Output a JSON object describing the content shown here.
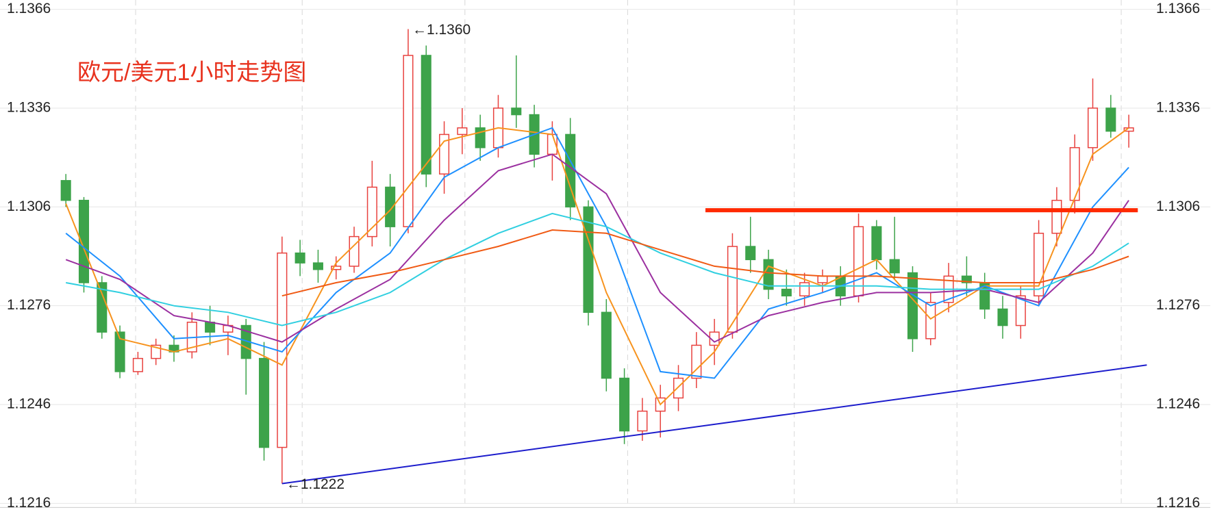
{
  "chart_data": {
    "type": "candlestick",
    "title": "欧元/美元1小时走势图",
    "ylim": [
      1.1216,
      1.1366
    ],
    "yticks": [
      1.1216,
      1.1246,
      1.1276,
      1.1306,
      1.1336,
      1.1366
    ],
    "y2lim": [
      1.1216,
      1.1366
    ],
    "y2ticks": [
      1.1216,
      1.1246,
      1.1276,
      1.1306,
      1.1336,
      1.1366
    ],
    "grid": true,
    "up_color": "#e8413e",
    "down_color": "#3da34a",
    "open": [
      1.1314,
      1.1308,
      1.1283,
      1.1268,
      1.1256,
      1.126,
      1.1264,
      1.1262,
      1.1271,
      1.1268,
      1.127,
      1.126,
      1.1233,
      1.1292,
      1.1289,
      1.1287,
      1.1288,
      1.1297,
      1.1312,
      1.13,
      1.1352,
      1.1316,
      1.1328,
      1.133,
      1.1324,
      1.1336,
      1.1334,
      1.1322,
      1.1328,
      1.1306,
      1.1274,
      1.1254,
      1.1238,
      1.1244,
      1.1248,
      1.1254,
      1.1264,
      1.1268,
      1.1294,
      1.129,
      1.1281,
      1.1279,
      1.1283,
      1.1285,
      1.1279,
      1.13,
      1.129,
      1.1286,
      1.1266,
      1.1277,
      1.1285,
      1.1283,
      1.1275,
      1.127,
      1.1279,
      1.1298,
      1.1308,
      1.1324,
      1.1336,
      1.1329
    ],
    "high": [
      1.1316,
      1.1309,
      1.1285,
      1.127,
      1.1262,
      1.1266,
      1.1267,
      1.1274,
      1.1276,
      1.1273,
      1.1272,
      1.1265,
      1.1297,
      1.1296,
      1.1293,
      1.1291,
      1.13,
      1.132,
      1.1316,
      1.136,
      1.1355,
      1.1332,
      1.1336,
      1.1334,
      1.134,
      1.1352,
      1.1337,
      1.1332,
      1.1333,
      1.1308,
      1.1278,
      1.1257,
      1.1248,
      1.1252,
      1.1258,
      1.1268,
      1.1272,
      1.1298,
      1.1303,
      1.1293,
      1.1287,
      1.1286,
      1.1287,
      1.1288,
      1.1304,
      1.1302,
      1.1303,
      1.1288,
      1.128,
      1.1289,
      1.1291,
      1.1286,
      1.1279,
      1.1282,
      1.1302,
      1.1312,
      1.1328,
      1.1345,
      1.134,
      1.1334
    ],
    "low": [
      1.1306,
      1.128,
      1.1266,
      1.1254,
      1.1255,
      1.1258,
      1.1259,
      1.126,
      1.1264,
      1.1261,
      1.1249,
      1.1229,
      1.1222,
      1.1285,
      1.1283,
      1.1284,
      1.1286,
      1.1294,
      1.1294,
      1.1298,
      1.1312,
      1.131,
      1.1322,
      1.132,
      1.1321,
      1.133,
      1.1318,
      1.1314,
      1.1302,
      1.127,
      1.125,
      1.1234,
      1.1235,
      1.1236,
      1.1244,
      1.1251,
      1.1258,
      1.1266,
      1.1286,
      1.1278,
      1.1276,
      1.1276,
      1.128,
      1.1276,
      1.1277,
      1.1287,
      1.1284,
      1.1262,
      1.1264,
      1.1274,
      1.1279,
      1.1272,
      1.1266,
      1.1266,
      1.1276,
      1.1294,
      1.1304,
      1.132,
      1.1327,
      1.1324
    ],
    "close": [
      1.1308,
      1.1283,
      1.1268,
      1.1256,
      1.126,
      1.1264,
      1.1262,
      1.1271,
      1.1268,
      1.127,
      1.126,
      1.1233,
      1.1292,
      1.1289,
      1.1287,
      1.1288,
      1.1297,
      1.1312,
      1.13,
      1.1352,
      1.1316,
      1.1328,
      1.133,
      1.1324,
      1.1336,
      1.1334,
      1.1322,
      1.1328,
      1.1306,
      1.1274,
      1.1254,
      1.1238,
      1.1244,
      1.1248,
      1.1254,
      1.1264,
      1.1268,
      1.1294,
      1.129,
      1.1281,
      1.1279,
      1.1283,
      1.1285,
      1.1279,
      1.13,
      1.129,
      1.1286,
      1.1266,
      1.1277,
      1.1285,
      1.1283,
      1.1275,
      1.127,
      1.1279,
      1.1298,
      1.1308,
      1.1324,
      1.1336,
      1.1329,
      1.133
    ],
    "series": [
      {
        "color": "#f7931e",
        "x": [
          0,
          3,
          6,
          9,
          12,
          15,
          18,
          21,
          24,
          27,
          30,
          33,
          36,
          39,
          42,
          45,
          48,
          51,
          54,
          57,
          59
        ],
        "values": [
          1.1307,
          1.1266,
          1.1262,
          1.1266,
          1.1258,
          1.1289,
          1.1305,
          1.1326,
          1.133,
          1.1328,
          1.128,
          1.1246,
          1.1262,
          1.1288,
          1.1282,
          1.129,
          1.1272,
          1.1282,
          1.1282,
          1.1322,
          1.133
        ]
      },
      {
        "color": "#1e90ff",
        "x": [
          0,
          3,
          6,
          9,
          12,
          15,
          18,
          21,
          24,
          27,
          30,
          33,
          36,
          39,
          42,
          45,
          48,
          51,
          54,
          57,
          59
        ],
        "values": [
          1.1298,
          1.1285,
          1.1266,
          1.1267,
          1.1262,
          1.128,
          1.1292,
          1.1315,
          1.1324,
          1.133,
          1.13,
          1.1256,
          1.1254,
          1.1275,
          1.128,
          1.1286,
          1.1276,
          1.1282,
          1.1276,
          1.1306,
          1.1318
        ]
      },
      {
        "color": "#9b30a0",
        "x": [
          0,
          3,
          6,
          9,
          12,
          15,
          18,
          21,
          24,
          27,
          30,
          33,
          36,
          39,
          42,
          45,
          48,
          51,
          54,
          57,
          59
        ],
        "values": [
          1.129,
          1.1284,
          1.1273,
          1.127,
          1.1265,
          1.1275,
          1.1284,
          1.1302,
          1.1317,
          1.1322,
          1.131,
          1.128,
          1.1265,
          1.1273,
          1.1277,
          1.128,
          1.128,
          1.1281,
          1.1277,
          1.1292,
          1.1308
        ]
      },
      {
        "color": "#30cfe0",
        "x": [
          0,
          3,
          6,
          9,
          12,
          15,
          18,
          21,
          24,
          27,
          30,
          33,
          36,
          39,
          42,
          45,
          48,
          51,
          54,
          57,
          59
        ],
        "values": [
          1.1283,
          1.128,
          1.1276,
          1.1274,
          1.127,
          1.1274,
          1.128,
          1.129,
          1.1298,
          1.1304,
          1.13,
          1.1292,
          1.1286,
          1.1282,
          1.1282,
          1.1282,
          1.1281,
          1.1281,
          1.1281,
          1.1288,
          1.1295
        ]
      },
      {
        "color": "#f05a14",
        "x": [
          12,
          15,
          18,
          21,
          24,
          27,
          30,
          33,
          36,
          39,
          42,
          45,
          48,
          51,
          54,
          57,
          59
        ],
        "values": [
          1.1279,
          1.1283,
          1.1286,
          1.129,
          1.1294,
          1.1299,
          1.1298,
          1.1293,
          1.1288,
          1.1286,
          1.1285,
          1.1285,
          1.1284,
          1.1283,
          1.1283,
          1.1287,
          1.1291
        ]
      }
    ],
    "lines": [
      {
        "color": "#ff2a00",
        "x": [
          35.5,
          59.5
        ],
        "y": [
          1.1305,
          1.1305
        ]
      },
      {
        "color": "#1c1ccc",
        "x": [
          12,
          60
        ],
        "y": [
          1.1222,
          1.1258
        ]
      }
    ],
    "annotations": [
      {
        "text": "←1.1360",
        "x": 19,
        "y": 1.136
      },
      {
        "text": "←1.1222",
        "x": 12,
        "y": 1.1222
      }
    ]
  }
}
